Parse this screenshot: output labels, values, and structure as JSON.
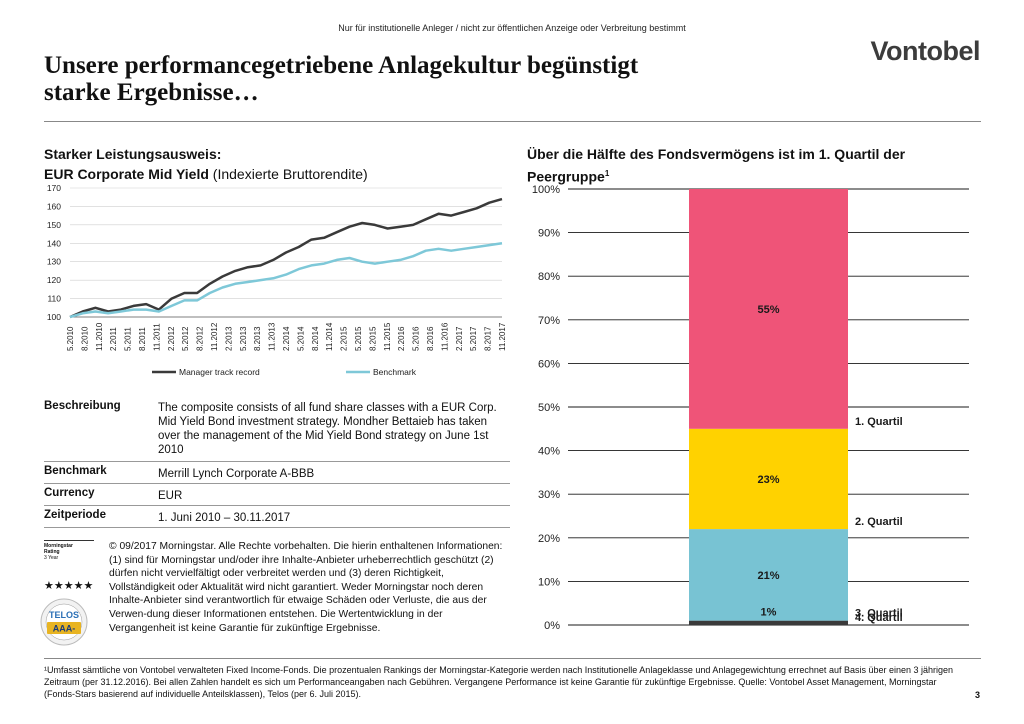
{
  "header": {
    "disclaimer": "Nur für institutionelle Anleger / nicht zur öffentlichen Anzeige oder Verbreitung bestimmt",
    "logo": "Vontobel",
    "title_line1": "Unsere performancegetriebene Anlagekultur begünstigt",
    "title_line2": "starke Ergebnisse…"
  },
  "left": {
    "heading1": "Starker Leistungsausweis:",
    "heading2_bold": "EUR Corporate Mid Yield",
    "heading2_normal": " (Indexierte Bruttorendite)"
  },
  "right": {
    "heading": "Über die Hälfte des Fondsvermögens ist im 1. Quartil der Peergruppe",
    "heading_sup": "1"
  },
  "chart_data": [
    {
      "type": "line",
      "ylim": [
        100,
        170
      ],
      "yticks": [
        100,
        110,
        120,
        130,
        140,
        150,
        160,
        170
      ],
      "x_tick_labels": [
        "5.2010",
        "8.2010",
        "11.2010",
        "2.2011",
        "5.2011",
        "8.2011",
        "11.2011",
        "2.2012",
        "5.2012",
        "8.2012",
        "11.2012",
        "2.2013",
        "5.2013",
        "8.2013",
        "11.2013",
        "2.2014",
        "5.2014",
        "8.2014",
        "11.2014",
        "2.2015",
        "5.2015",
        "8.2015",
        "11.2015",
        "2.2016",
        "5.2016",
        "8.2016",
        "11.2016",
        "2.2017",
        "5.2017",
        "8.2017",
        "11.2017"
      ],
      "legend_position": "bottom",
      "series": [
        {
          "name": "Manager track record",
          "color": "#3a3a3a",
          "values": [
            100,
            103,
            105,
            103,
            104,
            106,
            107,
            104,
            110,
            113,
            113,
            118,
            122,
            125,
            127,
            128,
            131,
            135,
            138,
            142,
            143,
            146,
            149,
            151,
            150,
            148,
            149,
            150,
            153,
            156,
            155,
            157,
            159,
            162,
            164
          ]
        },
        {
          "name": "Benchmark",
          "color": "#7ec8d8",
          "values": [
            100,
            102,
            103,
            102,
            103,
            104,
            104,
            103,
            106,
            109,
            109,
            113,
            116,
            118,
            119,
            120,
            121,
            123,
            126,
            128,
            129,
            131,
            132,
            130,
            129,
            130,
            131,
            133,
            136,
            137,
            136,
            137,
            138,
            139,
            140
          ]
        }
      ]
    },
    {
      "type": "bar",
      "stacked": true,
      "ylim": [
        0,
        100
      ],
      "yticks": [
        "0%",
        "10%",
        "20%",
        "30%",
        "40%",
        "50%",
        "60%",
        "70%",
        "80%",
        "90%",
        "100%"
      ],
      "series": [
        {
          "name": "4. Quartil",
          "value": 1,
          "label": "1%",
          "color": "#3a3a3a"
        },
        {
          "name": "3. Quartil",
          "value": 21,
          "label": "21%",
          "color": "#78c3d3"
        },
        {
          "name": "2. Quartil",
          "value": 23,
          "label": "23%",
          "color": "#ffd200"
        },
        {
          "name": "1. Quartil",
          "value": 55,
          "label": "55%",
          "color": "#ef5478"
        }
      ]
    }
  ],
  "table": [
    {
      "label": "Beschreibung",
      "value": "The composite consists of all fund share classes with a EUR Corp. Mid Yield Bond investment strategy. Mondher Bettaieb has taken over the management of the Mid Yield Bond strategy on June 1st 2010"
    },
    {
      "label": "Benchmark",
      "value": "Merrill Lynch Corporate A-BBB"
    },
    {
      "label": "Currency",
      "value": "EUR"
    },
    {
      "label": "Zeitperiode",
      "value": "1. Juni 2010 – 30.11.2017"
    }
  ],
  "morningstar": {
    "badge_line1": "Morningstar",
    "badge_line2": "Rating",
    "badge_line3": "3 Year",
    "stars": "★★★★★",
    "text": "© 09/2017 Morningstar. Alle Rechte vorbehalten. Die hierin enthaltenen Informationen: (1) sind für Morningstar und/oder ihre Inhalte-Anbieter urheberrechtlich geschützt (2) dürfen nicht vervielfältigt oder verbreitet werden und (3) deren Richtigkeit, Vollständigkeit oder Aktualität wird nicht garantiert. Weder Morningstar noch deren Inhalte-Anbieter sind verantwortlich für etwaige Schäden oder Verluste, die aus der Verwen-dung dieser Informationen entstehen. Die Wertentwicklung in der Vergangenheit ist keine Garantie für zukünftige Ergebnisse."
  },
  "telos": {
    "top": "TELOS",
    "rating": "AAA-"
  },
  "footnote": "¹Umfasst sämtliche von Vontobel verwalteten Fixed Income-Fonds. Die prozentualen Rankings der Morningstar-Kategorie werden nach Institutionelle Anlageklasse und Anlagegewichtung errechnet auf Basis über einen 3 jährigen Zeitraum (per 31.12.2016). Bei allen Zahlen handelt es sich um Performanceangaben nach Gebühren. Vergangene Performance ist keine Garantie für zukünftige Ergebnisse. Quelle: Vontobel Asset Management, Morningstar (Fonds-Stars basierend auf individuelle Anteilsklassen), Telos (per 6. Juli 2015).",
  "page_number": "3"
}
